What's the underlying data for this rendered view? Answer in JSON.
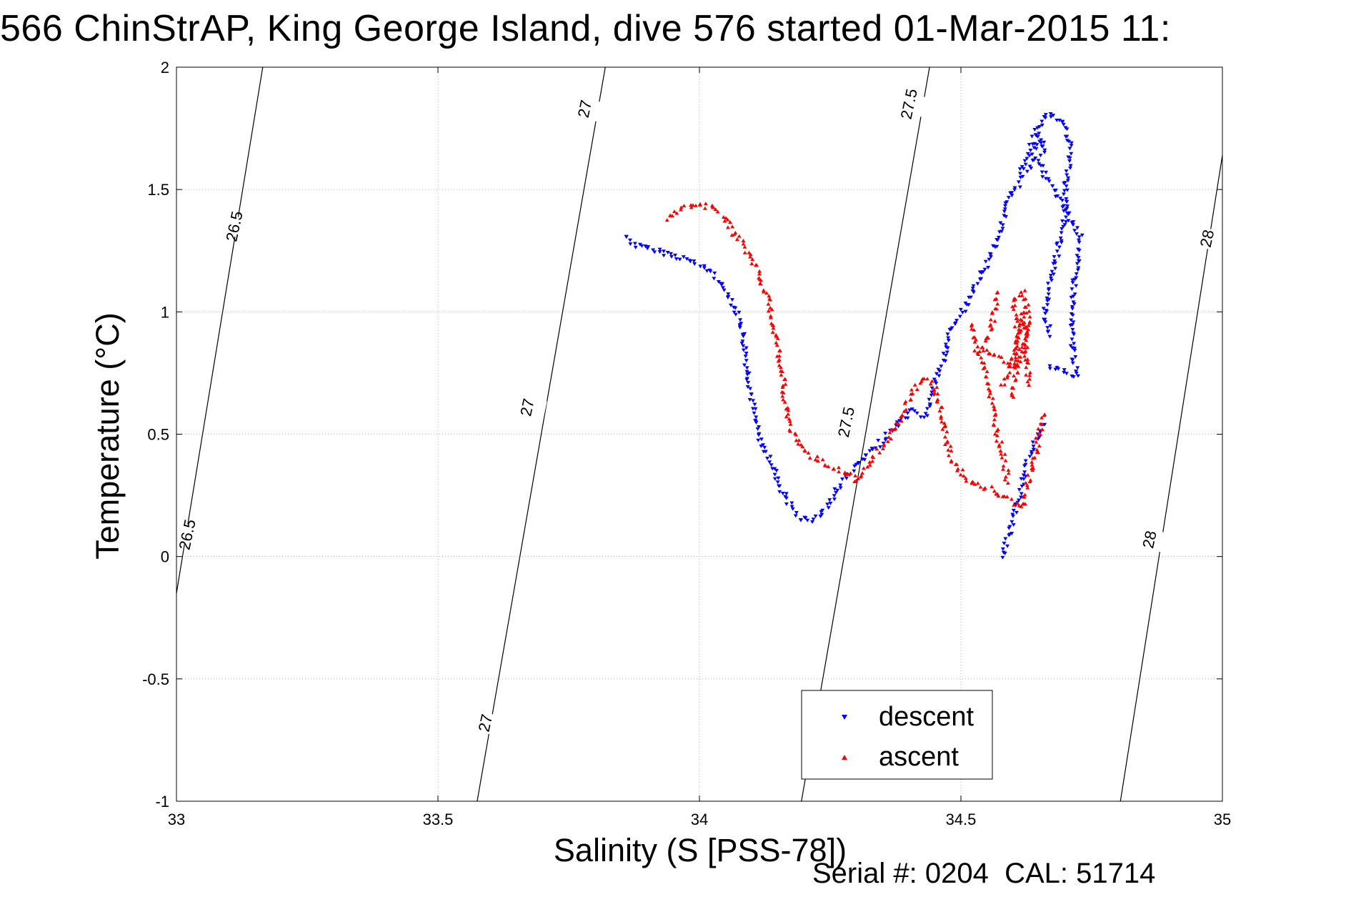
{
  "title": "566 ChinStrAP, King George Island, dive 576 started 01-Mar-2015 11:",
  "footer": "Serial #: 0204  CAL: 51714",
  "chart_data": {
    "type": "scatter",
    "xlabel": "Salinity (S [PSS-78])",
    "ylabel": "Temperature (°C)",
    "xlim": [
      33,
      35
    ],
    "ylim": [
      -1,
      2
    ],
    "xticks": [
      "33",
      "33.5",
      "34",
      "34.5",
      "35"
    ],
    "yticks": [
      "-1",
      "-0.5",
      "0",
      "0.5",
      "1",
      "1.5",
      "2"
    ],
    "grid": true,
    "legend_position": "bottom-right",
    "isopycnals": [
      {
        "label": "26.5",
        "points": [
          [
            33.0,
            -0.15
          ],
          [
            33.165,
            2.0
          ]
        ]
      },
      {
        "label": "27",
        "points": [
          [
            33.575,
            -1.0
          ],
          [
            33.82,
            2.0
          ]
        ]
      },
      {
        "label": "27.5",
        "points": [
          [
            34.195,
            -1.0
          ],
          [
            34.44,
            2.0
          ]
        ]
      },
      {
        "label": "28",
        "points": [
          [
            34.805,
            -1.0
          ],
          [
            35.0,
            1.64
          ]
        ]
      }
    ],
    "contour_labels": [
      {
        "text": "26.5",
        "x": 33.11,
        "y": 1.35
      },
      {
        "text": "26.5",
        "x": 33.02,
        "y": 0.09
      },
      {
        "text": "27",
        "x": 33.78,
        "y": 1.83
      },
      {
        "text": "27",
        "x": 33.67,
        "y": 0.61
      },
      {
        "text": "27",
        "x": 33.59,
        "y": -0.68
      },
      {
        "text": "27.5",
        "x": 34.4,
        "y": 1.85
      },
      {
        "text": "27.5",
        "x": 34.28,
        "y": 0.55
      },
      {
        "text": "28",
        "x": 34.97,
        "y": 1.3
      },
      {
        "text": "28",
        "x": 34.86,
        "y": 0.07
      }
    ],
    "series": [
      {
        "name": "descent",
        "color": "#0000ff",
        "marker": "triangle-down",
        "segments": [
          [
            [
              33.86,
              1.31
            ],
            [
              33.88,
              1.27
            ],
            [
              33.92,
              1.25
            ],
            [
              33.97,
              1.22
            ],
            [
              34.02,
              1.17
            ],
            [
              34.06,
              1.06
            ],
            [
              34.08,
              0.95
            ],
            [
              34.09,
              0.8
            ],
            [
              34.1,
              0.65
            ],
            [
              34.11,
              0.52
            ],
            [
              34.12,
              0.45
            ],
            [
              34.14,
              0.38
            ],
            [
              34.15,
              0.3
            ],
            [
              34.17,
              0.22
            ],
            [
              34.19,
              0.16
            ],
            [
              34.22,
              0.15
            ],
            [
              34.25,
              0.22
            ],
            [
              34.27,
              0.3
            ],
            [
              34.3,
              0.37
            ],
            [
              34.33,
              0.43
            ],
            [
              34.36,
              0.5
            ],
            [
              34.39,
              0.56
            ],
            [
              34.41,
              0.6
            ],
            [
              34.43,
              0.57
            ],
            [
              34.44,
              0.62
            ],
            [
              34.45,
              0.7
            ],
            [
              34.46,
              0.76
            ],
            [
              34.47,
              0.84
            ],
            [
              34.48,
              0.92
            ],
            [
              34.5,
              0.99
            ],
            [
              34.52,
              1.05
            ],
            [
              34.53,
              1.12
            ],
            [
              34.55,
              1.2
            ],
            [
              34.57,
              1.3
            ],
            [
              34.58,
              1.37
            ],
            [
              34.59,
              1.45
            ],
            [
              34.61,
              1.52
            ],
            [
              34.62,
              1.6
            ],
            [
              34.64,
              1.72
            ],
            [
              34.66,
              1.8
            ],
            [
              34.68,
              1.8
            ],
            [
              34.7,
              1.76
            ],
            [
              34.71,
              1.65
            ],
            [
              34.7,
              1.5
            ],
            [
              34.7,
              1.4
            ],
            [
              34.69,
              1.3
            ],
            [
              34.68,
              1.2
            ],
            [
              34.67,
              1.1
            ],
            [
              34.66,
              1.0
            ],
            [
              34.67,
              0.9
            ]
          ],
          [
            [
              34.58,
              0.0
            ],
            [
              34.59,
              0.08
            ],
            [
              34.6,
              0.16
            ],
            [
              34.61,
              0.24
            ],
            [
              34.62,
              0.32
            ],
            [
              34.63,
              0.4
            ],
            [
              34.64,
              0.47
            ],
            [
              34.66,
              0.54
            ],
            [
              34.63,
              1.58
            ],
            [
              34.64,
              1.65
            ],
            [
              34.65,
              1.72
            ],
            [
              34.66,
              1.68
            ],
            [
              34.65,
              1.6
            ],
            [
              34.73,
              1.3
            ],
            [
              34.72,
              1.18
            ],
            [
              34.71,
              0.95
            ],
            [
              34.72,
              0.74
            ],
            [
              34.67,
              0.78
            ]
          ]
        ]
      },
      {
        "name": "ascent",
        "color": "#ff0000",
        "marker": "triangle-up",
        "segments": [
          [
            [
              33.94,
              1.38
            ],
            [
              33.95,
              1.4
            ],
            [
              33.97,
              1.42
            ],
            [
              34.0,
              1.44
            ],
            [
              34.03,
              1.42
            ],
            [
              34.05,
              1.38
            ],
            [
              34.07,
              1.31
            ],
            [
              34.09,
              1.25
            ],
            [
              34.11,
              1.18
            ],
            [
              34.13,
              1.05
            ],
            [
              34.14,
              0.96
            ],
            [
              34.15,
              0.85
            ],
            [
              34.16,
              0.74
            ],
            [
              34.16,
              0.65
            ],
            [
              34.17,
              0.57
            ],
            [
              34.18,
              0.49
            ],
            [
              34.2,
              0.43
            ],
            [
              34.24,
              0.38
            ],
            [
              34.27,
              0.35
            ],
            [
              34.29,
              0.33
            ],
            [
              34.3,
              0.3
            ],
            [
              34.32,
              0.36
            ],
            [
              34.35,
              0.45
            ],
            [
              34.38,
              0.55
            ],
            [
              34.41,
              0.68
            ],
            [
              34.43,
              0.73
            ],
            [
              34.45,
              0.7
            ],
            [
              34.46,
              0.6
            ],
            [
              34.47,
              0.5
            ],
            [
              34.48,
              0.4
            ],
            [
              34.5,
              0.35
            ],
            [
              34.52,
              0.3
            ],
            [
              34.55,
              0.28
            ],
            [
              34.58,
              0.25
            ],
            [
              34.6,
              0.22
            ],
            [
              34.62,
              0.2
            ],
            [
              34.63,
              0.32
            ],
            [
              34.64,
              0.4
            ],
            [
              34.65,
              0.5
            ],
            [
              34.66,
              0.58
            ]
          ],
          [
            [
              34.52,
              0.95
            ],
            [
              34.53,
              0.85
            ],
            [
              34.55,
              0.75
            ],
            [
              34.56,
              0.62
            ],
            [
              34.57,
              0.5
            ],
            [
              34.58,
              0.42
            ],
            [
              34.59,
              0.3
            ],
            [
              34.6,
              0.65
            ],
            [
              34.61,
              0.9
            ],
            [
              34.6,
              1.05
            ],
            [
              34.62,
              1.08
            ],
            [
              34.63,
              0.98
            ],
            [
              34.61,
              0.77
            ],
            [
              34.54,
              0.85
            ],
            [
              34.56,
              0.95
            ],
            [
              34.57,
              1.08
            ],
            [
              34.58,
              0.7
            ],
            [
              34.6,
              0.8
            ],
            [
              34.62,
              1.0
            ],
            [
              34.63,
              0.7
            ]
          ]
        ]
      }
    ]
  }
}
